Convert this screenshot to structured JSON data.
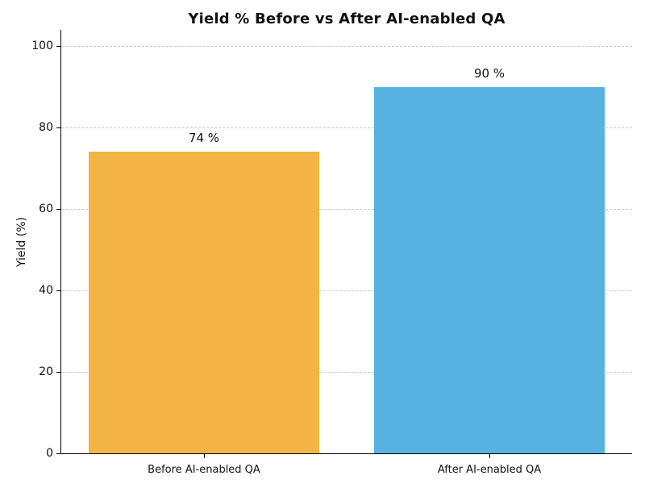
{
  "chart_data": {
    "type": "bar",
    "title": "Yield % Before vs After AI-enabled QA",
    "categories": [
      "Before AI-enabled QA",
      "After AI-enabled QA"
    ],
    "values": [
      74,
      90
    ],
    "bar_labels": [
      "74 %",
      "90 %"
    ],
    "bar_colors": [
      "#F2B444",
      "#57B2E2"
    ],
    "xlabel": "",
    "ylabel": "Yield (%)",
    "ylim": [
      0,
      104
    ],
    "yticks": [
      0,
      20,
      40,
      60,
      80,
      100
    ],
    "grid": "horizontal-dashed",
    "gridline_color": "#cccccc",
    "legend_position": "none",
    "bar_width_fraction": 0.81
  }
}
